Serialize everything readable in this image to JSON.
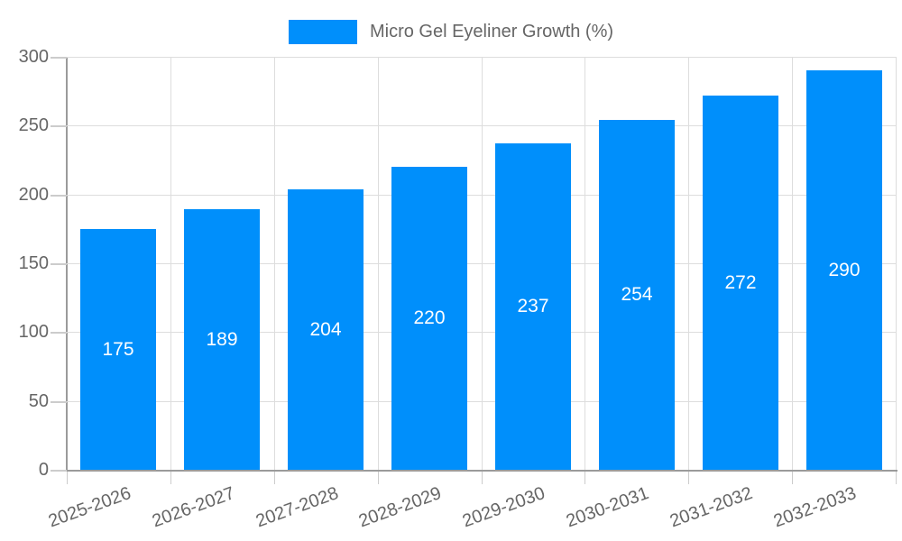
{
  "legend": {
    "label": "Micro Gel Eyeliner Growth (%)"
  },
  "chart_data": {
    "type": "bar",
    "title": "Micro Gel Eyeliner Growth (%)",
    "series": [
      {
        "name": "Micro Gel Eyeliner Growth (%)",
        "values": [
          175,
          189,
          204,
          220,
          237,
          254,
          272,
          290
        ]
      }
    ],
    "categories": [
      "2025-2026",
      "2026-2027",
      "2027-2028",
      "2028-2029",
      "2029-2030",
      "2030-2031",
      "2031-2032",
      "2032-2033"
    ],
    "values": [
      175,
      189,
      204,
      220,
      237,
      254,
      272,
      290
    ],
    "value_labels": [
      "175",
      "189",
      "204",
      "220",
      "237",
      "254",
      "272",
      "290"
    ],
    "xlabel": "",
    "ylabel": "",
    "ylim": [
      0,
      300
    ],
    "yticks": [
      0,
      50,
      100,
      150,
      200,
      250,
      300
    ],
    "grid": true,
    "legend_position": "top-center",
    "x_label_rotation_deg": -20,
    "colors": {
      "bar": "#008FFB",
      "value_label": "#ffffff",
      "axis_label": "#666666",
      "axis_line": "#9b9b9b",
      "tick": "#cccccc",
      "gridline": "#dddddd",
      "background": "#ffffff"
    }
  }
}
